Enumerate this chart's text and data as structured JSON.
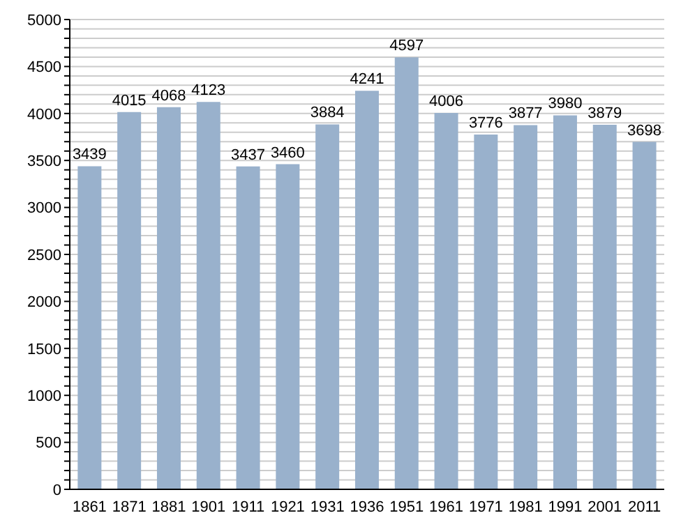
{
  "chart_data": {
    "type": "bar",
    "categories": [
      "1861",
      "1871",
      "1881",
      "1901",
      "1911",
      "1921",
      "1931",
      "1936",
      "1951",
      "1961",
      "1971",
      "1981",
      "1991",
      "2001",
      "2011"
    ],
    "values": [
      3439,
      4015,
      4068,
      4123,
      3437,
      3460,
      3884,
      4241,
      4597,
      4006,
      3776,
      3877,
      3980,
      3879,
      3698
    ],
    "color": "#99b1cc",
    "data_labels": true,
    "grid": "y",
    "ylim": [
      0,
      5000
    ],
    "yticks": [
      0,
      {
        "value": 100,
        "label": null
      },
      {
        "value": 200,
        "label": null
      },
      {
        "value": 300,
        "label": null
      },
      {
        "value": 400,
        "label": null
      },
      500,
      {
        "value": 600,
        "label": null
      },
      {
        "value": 700,
        "label": null
      },
      {
        "value": 800,
        "label": null
      },
      {
        "value": 900,
        "label": null
      },
      1000,
      {
        "value": 1100,
        "label": null
      },
      {
        "value": 1200,
        "label": null
      },
      {
        "value": 1300,
        "label": null
      },
      {
        "value": 1400,
        "label": null
      },
      1500,
      {
        "value": 1600,
        "label": null
      },
      {
        "value": 1700,
        "label": null
      },
      {
        "value": 1800,
        "label": null
      },
      {
        "value": 1900,
        "label": null
      },
      2000,
      {
        "value": 2100,
        "label": null
      },
      {
        "value": 2200,
        "label": null
      },
      {
        "value": 2300,
        "label": null
      },
      {
        "value": 2400,
        "label": null
      },
      2500,
      {
        "value": 2600,
        "label": null
      },
      {
        "value": 2700,
        "label": null
      },
      {
        "value": 2800,
        "label": null
      },
      {
        "value": 2900,
        "label": null
      },
      3000,
      {
        "value": 3100,
        "label": null
      },
      {
        "value": 3200,
        "label": null
      },
      {
        "value": 3300,
        "label": null
      },
      {
        "value": 3400,
        "label": null
      },
      3500,
      {
        "value": 3600,
        "label": null
      },
      {
        "value": 3700,
        "label": null
      },
      {
        "value": 3800,
        "label": null
      },
      {
        "value": 3900,
        "label": null
      },
      4000,
      {
        "value": 4100,
        "label": null
      },
      {
        "value": 4200,
        "label": null
      },
      {
        "value": 4300,
        "label": null
      },
      {
        "value": 4400,
        "label": null
      },
      4500,
      {
        "value": 4600,
        "label": null
      },
      {
        "value": 4700,
        "label": null
      },
      {
        "value": 4800,
        "label": null
      },
      {
        "value": 4900,
        "label": null
      },
      5000
    ]
  }
}
